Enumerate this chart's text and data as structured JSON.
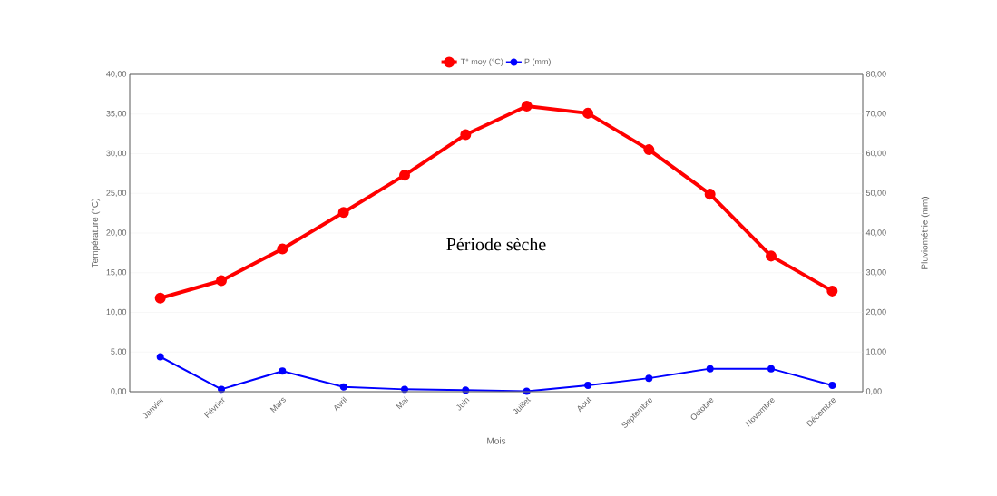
{
  "chart_data": {
    "type": "line",
    "categories": [
      "Janvier",
      "Février",
      "Mars",
      "Avril",
      "Mai",
      "Juin",
      "Juillet",
      "Aout",
      "Septembre",
      "Octobre",
      "Novembre",
      "Décembre"
    ],
    "series": [
      {
        "name": "T° moy (°C)",
        "color": "#ff0000",
        "values": [
          11.8,
          14.0,
          18.0,
          22.6,
          27.3,
          32.4,
          36.0,
          35.1,
          30.5,
          24.9,
          17.1,
          12.7
        ]
      },
      {
        "name": "P (mm)",
        "color": "#0000ff",
        "axis": "y2",
        "values": [
          8.8,
          0.6,
          5.2,
          1.2,
          0.6,
          0.4,
          0.1,
          1.6,
          3.4,
          5.8,
          5.8,
          1.6
        ]
      }
    ],
    "xlabel": "Mois",
    "ylabel": "Température (°C)",
    "y2label": "Pluviométrie (mm)",
    "ylim": [
      0,
      40
    ],
    "yticks": [
      {
        "value": 0,
        "label": "0,00"
      },
      {
        "value": 5,
        "label": "5,00"
      },
      {
        "value": 10,
        "label": "10,00"
      },
      {
        "value": 15,
        "label": "15,00"
      },
      {
        "value": 20,
        "label": "20,00"
      },
      {
        "value": 25,
        "label": "25,00"
      },
      {
        "value": 30,
        "label": "30,00"
      },
      {
        "value": 35,
        "label": "35,00"
      },
      {
        "value": 40,
        "label": "40,00"
      }
    ],
    "y2lim": [
      0,
      80
    ],
    "y2ticks": [
      {
        "value": 0,
        "label": "0,00"
      },
      {
        "value": 10,
        "label": "10,00"
      },
      {
        "value": 20,
        "label": "20,00"
      },
      {
        "value": 30,
        "label": "30,00"
      },
      {
        "value": 40,
        "label": "40,00"
      },
      {
        "value": 50,
        "label": "50,00"
      },
      {
        "value": 60,
        "label": "60,00"
      },
      {
        "value": 70,
        "label": "70,00"
      },
      {
        "value": 80,
        "label": "80,00"
      }
    ],
    "annotations": [
      "Période sèche"
    ],
    "grid": "y",
    "legend": "top",
    "marker": "circle",
    "line_style": "solid"
  }
}
